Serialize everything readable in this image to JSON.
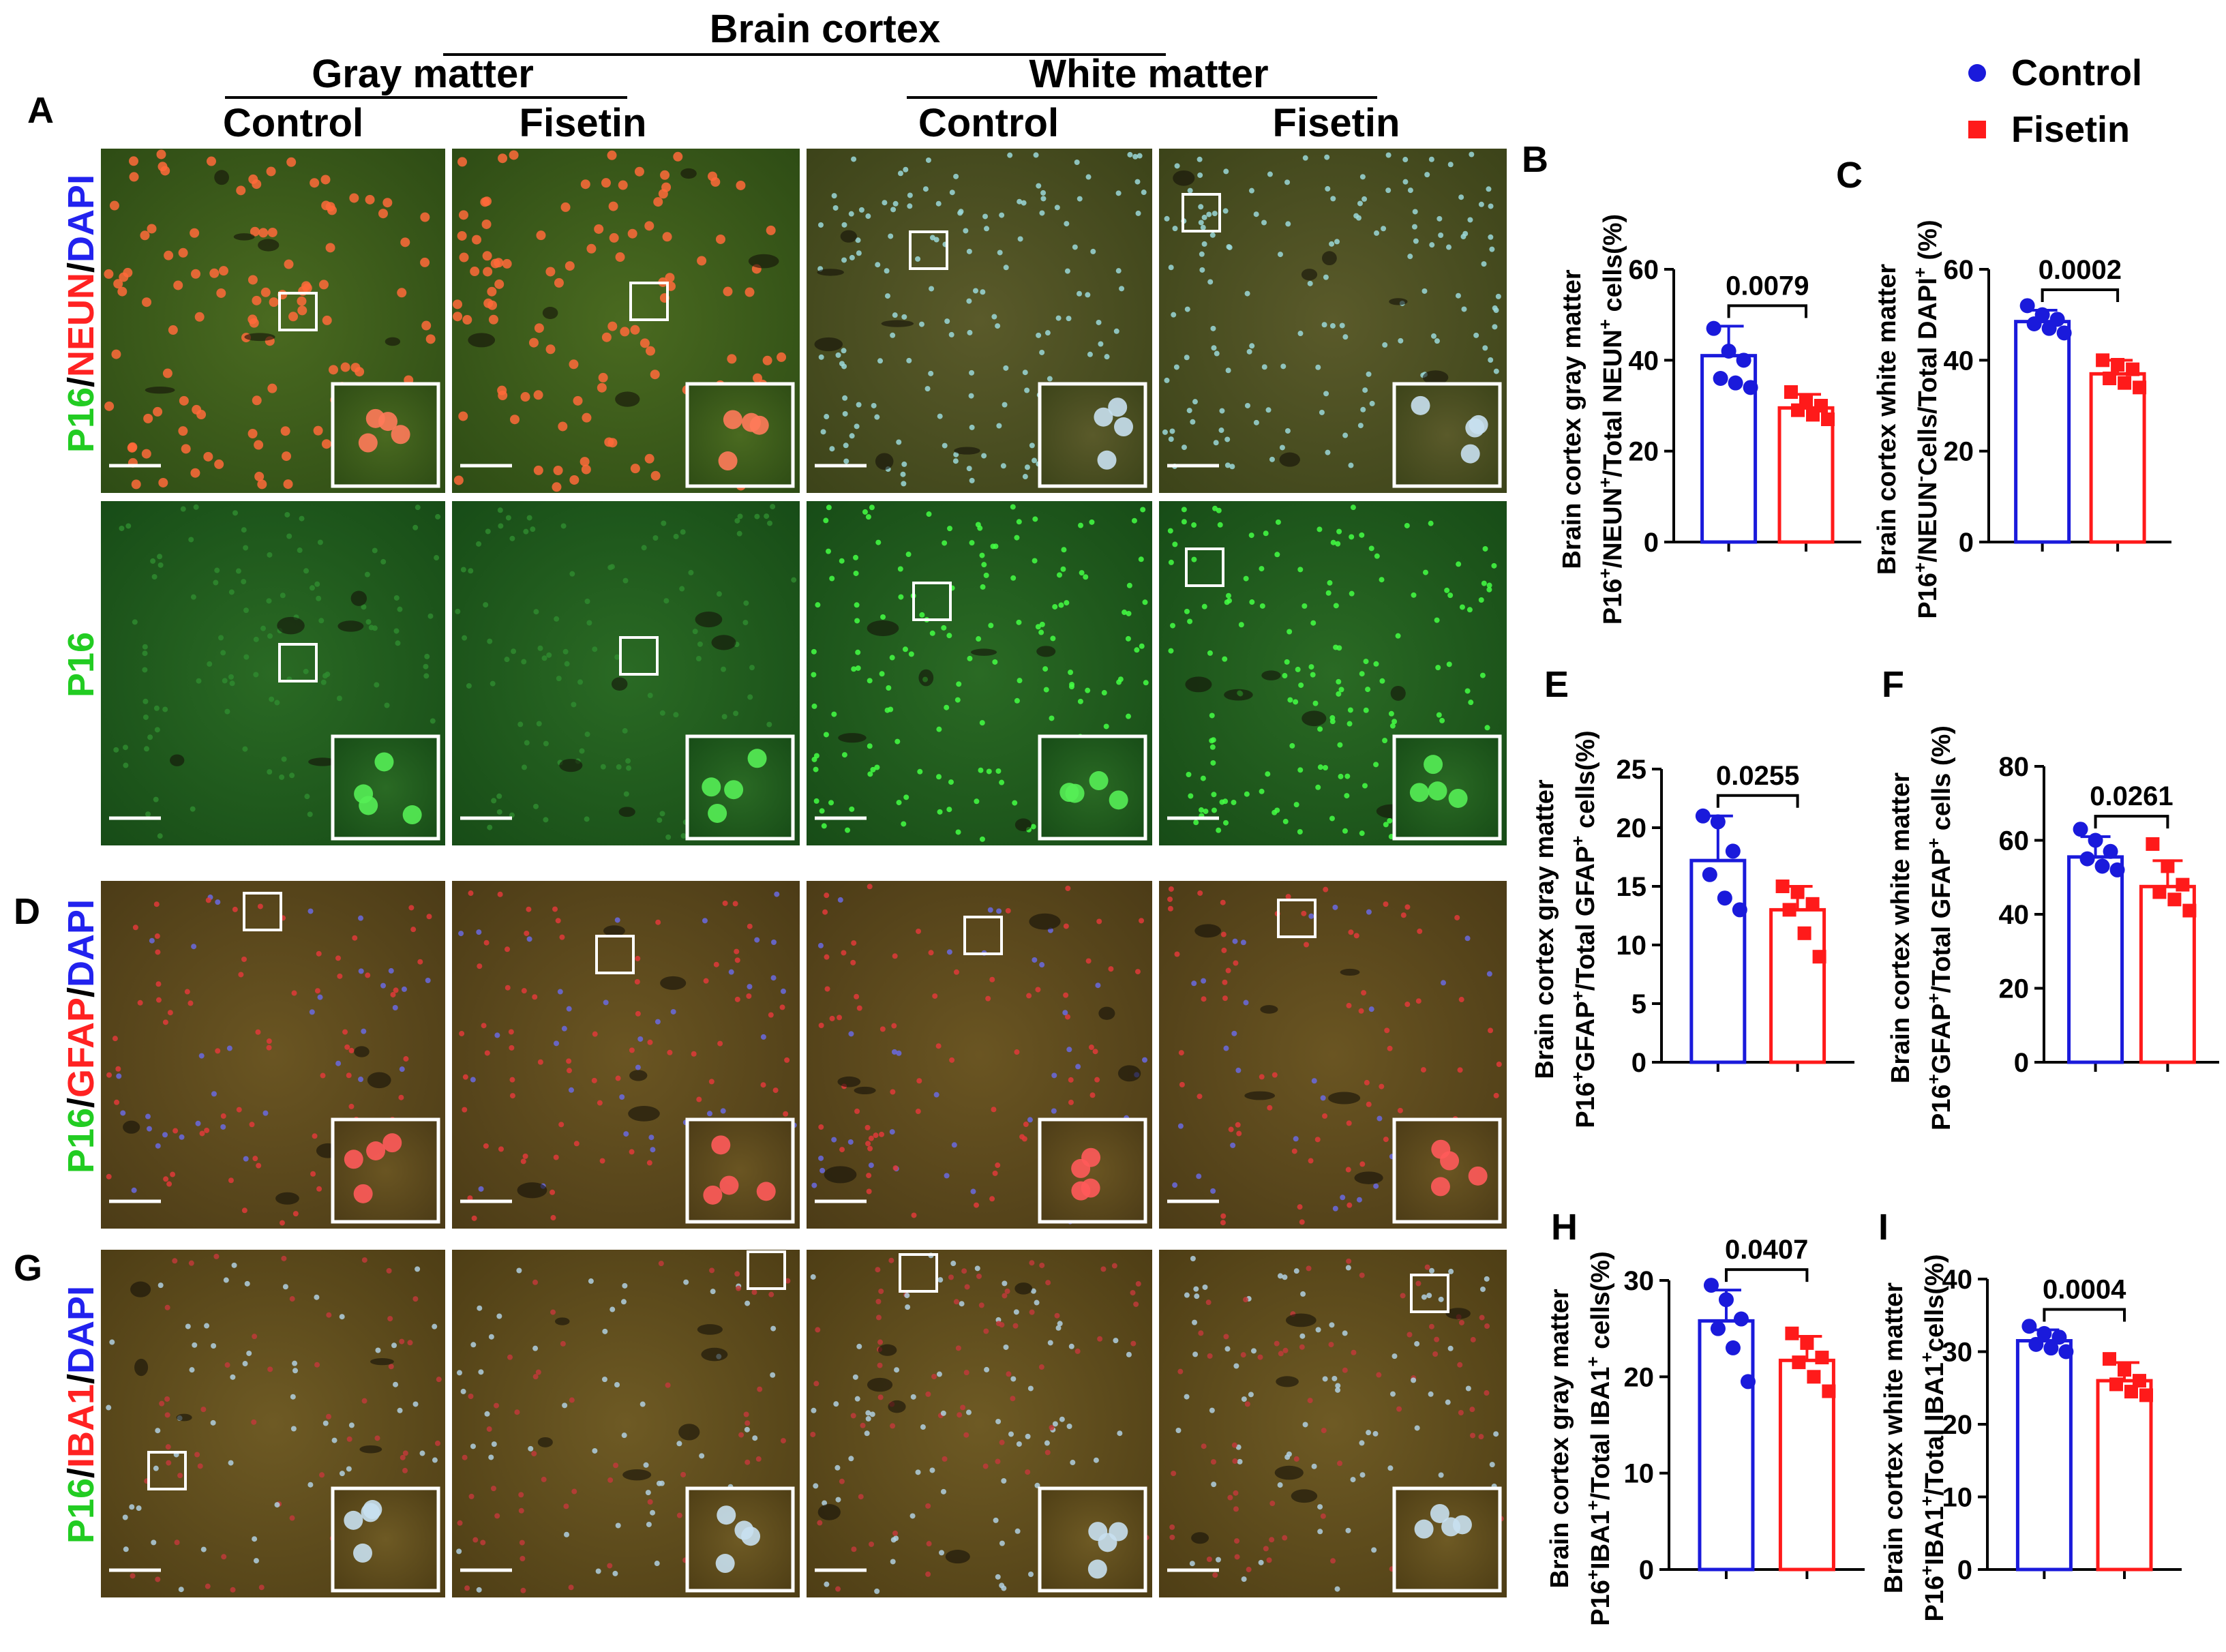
{
  "header": {
    "title": "Brain cortex",
    "gray_matter": "Gray matter",
    "white_matter": "White matter",
    "columns": [
      "Control",
      "Fisetin",
      "Control",
      "Fisetin"
    ]
  },
  "legend": {
    "items": [
      {
        "label": "Control",
        "color": "#1a1adb",
        "marker": "circle"
      },
      {
        "label": "Fisetin",
        "color": "#ff1a1a",
        "marker": "square"
      }
    ]
  },
  "panel_letters": {
    "A": "A",
    "D": "D",
    "G": "G"
  },
  "rows": [
    {
      "id": "p16-neun-dapi",
      "label": [
        {
          "t": "P16",
          "c": "#22cc22"
        },
        {
          "t": "/",
          "c": "#000000"
        },
        {
          "t": "NEUN",
          "c": "#ff2222"
        },
        {
          "t": "/",
          "c": "#000000"
        },
        {
          "t": "DAPI",
          "c": "#2222ee"
        }
      ]
    },
    {
      "id": "p16",
      "label": [
        {
          "t": "P16",
          "c": "#22cc22"
        }
      ]
    },
    {
      "id": "p16-gfap-dapi",
      "label": [
        {
          "t": "P16",
          "c": "#22cc22"
        },
        {
          "t": "/",
          "c": "#000000"
        },
        {
          "t": "GFAP",
          "c": "#ff2222"
        },
        {
          "t": "/",
          "c": "#000000"
        },
        {
          "t": "DAPI",
          "c": "#2222ee"
        }
      ]
    },
    {
      "id": "p16-iba1-dapi",
      "label": [
        {
          "t": "P16",
          "c": "#22cc22"
        },
        {
          "t": "/",
          "c": "#000000"
        },
        {
          "t": "IBA1",
          "c": "#ff2222"
        },
        {
          "t": "/",
          "c": "#000000"
        },
        {
          "t": "DAPI",
          "c": "#2222ee"
        }
      ]
    }
  ],
  "colors": {
    "control": "#1a1adb",
    "fisetin": "#ff1a1a",
    "tissue_neun": "#3a5a1a",
    "tissue_green": "#1e5a1e",
    "tissue_white_dim": "#3a4a20",
    "tissue_gfap": "#5a4a1a",
    "tissue_iba1": "#5a4818"
  },
  "chart_data": [
    {
      "id": "B",
      "type": "bar",
      "categories": [
        "Control",
        "Fisetin"
      ],
      "values": [
        41,
        29.5
      ],
      "errors": [
        6.5,
        3.0
      ],
      "points": [
        [
          47,
          42,
          40,
          36,
          35,
          34
        ],
        [
          33,
          31,
          30,
          29,
          28,
          27
        ]
      ],
      "ylim": [
        0,
        60
      ],
      "ticks": [
        0,
        20,
        40,
        60
      ],
      "pvalue": "0.0079",
      "ylabel1": "Brain cortex gray matter",
      "ylabel2": [
        {
          "t": "P16"
        },
        {
          "t": "+",
          "sup": true
        },
        {
          "t": "/NEUN"
        },
        {
          "t": "+",
          "sup": true
        },
        {
          "t": "/Total NEUN"
        },
        {
          "t": "+",
          "sup": true
        },
        {
          "t": " cells(%)"
        }
      ]
    },
    {
      "id": "C",
      "type": "bar",
      "categories": [
        "Control",
        "Fisetin"
      ],
      "values": [
        48.5,
        37
      ],
      "errors": [
        2.5,
        3.0
      ],
      "points": [
        [
          52,
          50,
          49,
          48,
          47,
          46
        ],
        [
          40,
          39,
          38,
          36,
          35,
          34
        ]
      ],
      "ylim": [
        0,
        60
      ],
      "ticks": [
        0,
        20,
        40,
        60
      ],
      "pvalue": "0.0002",
      "ylabel1": "Brain cortex white matter",
      "ylabel2": [
        {
          "t": "P16"
        },
        {
          "t": "+",
          "sup": true
        },
        {
          "t": "/NEUN"
        },
        {
          "t": "-",
          "sup": true
        },
        {
          "t": "Cells/Total DAPI"
        },
        {
          "t": "+",
          "sup": true
        },
        {
          "t": " (%)"
        }
      ]
    },
    {
      "id": "E",
      "type": "bar",
      "categories": [
        "Control",
        "Fisetin"
      ],
      "values": [
        17.2,
        13.0
      ],
      "errors": [
        3.8,
        2.0
      ],
      "points": [
        [
          21,
          20.5,
          18,
          16,
          14,
          13
        ],
        [
          15,
          14.5,
          13.5,
          13,
          11,
          9
        ]
      ],
      "ylim": [
        0,
        25
      ],
      "ticks": [
        0,
        5,
        10,
        15,
        20,
        25
      ],
      "pvalue": "0.0255",
      "ylabel1": "Brain cortex gray matter",
      "ylabel2": [
        {
          "t": "P16"
        },
        {
          "t": "+",
          "sup": true
        },
        {
          "t": "GFAP"
        },
        {
          "t": "+",
          "sup": true
        },
        {
          "t": "/Total GFAP"
        },
        {
          "t": "+",
          "sup": true
        },
        {
          "t": " cells(%)"
        }
      ]
    },
    {
      "id": "F",
      "type": "bar",
      "categories": [
        "Control",
        "Fisetin"
      ],
      "values": [
        55.5,
        47.5
      ],
      "errors": [
        5.5,
        7.0
      ],
      "points": [
        [
          63,
          60,
          57,
          55,
          53,
          52
        ],
        [
          59,
          53,
          48,
          46,
          44,
          41
        ]
      ],
      "ylim": [
        0,
        80
      ],
      "ticks": [
        0,
        20,
        40,
        60,
        80
      ],
      "pvalue": "0.0261",
      "ylabel1": "Brain cortex white matter",
      "ylabel2": [
        {
          "t": "P16"
        },
        {
          "t": "+",
          "sup": true
        },
        {
          "t": "GFAP"
        },
        {
          "t": "+",
          "sup": true
        },
        {
          "t": "/Total GFAP"
        },
        {
          "t": "+",
          "sup": true
        },
        {
          "t": " cells (%)"
        }
      ]
    },
    {
      "id": "H",
      "type": "bar",
      "categories": [
        "Control",
        "Fisetin"
      ],
      "values": [
        25.8,
        21.7
      ],
      "errors": [
        3.2,
        2.5
      ],
      "points": [
        [
          29.5,
          28,
          26,
          25,
          23,
          19.5
        ],
        [
          24.5,
          23.5,
          22,
          21.5,
          20,
          18.5
        ]
      ],
      "ylim": [
        0,
        30
      ],
      "ticks": [
        0,
        10,
        20,
        30
      ],
      "pvalue": "0.0407",
      "ylabel1": "Brain cortex gray matter",
      "ylabel2": [
        {
          "t": "P16"
        },
        {
          "t": "+",
          "sup": true
        },
        {
          "t": "IBA1"
        },
        {
          "t": "+",
          "sup": true
        },
        {
          "t": "/Total IBA1"
        },
        {
          "t": "+",
          "sup": true
        },
        {
          "t": " cells(%)"
        }
      ]
    },
    {
      "id": "I",
      "type": "bar",
      "categories": [
        "Control",
        "Fisetin"
      ],
      "values": [
        31.5,
        26
      ],
      "errors": [
        1.5,
        2.5
      ],
      "points": [
        [
          33.5,
          32.5,
          32,
          31,
          30.5,
          30
        ],
        [
          29,
          27.5,
          26,
          25.5,
          24.5,
          24
        ]
      ],
      "ylim": [
        0,
        40
      ],
      "ticks": [
        0,
        10,
        20,
        30,
        40
      ],
      "pvalue": "0.0004",
      "ylabel1": "Brain cortex white matter",
      "ylabel2": [
        {
          "t": "P16"
        },
        {
          "t": "+",
          "sup": true
        },
        {
          "t": "IBA1"
        },
        {
          "t": "+",
          "sup": true
        },
        {
          "t": "/Total IBA1"
        },
        {
          "t": "+",
          "sup": true
        },
        {
          "t": "cells(%)"
        }
      ]
    }
  ]
}
